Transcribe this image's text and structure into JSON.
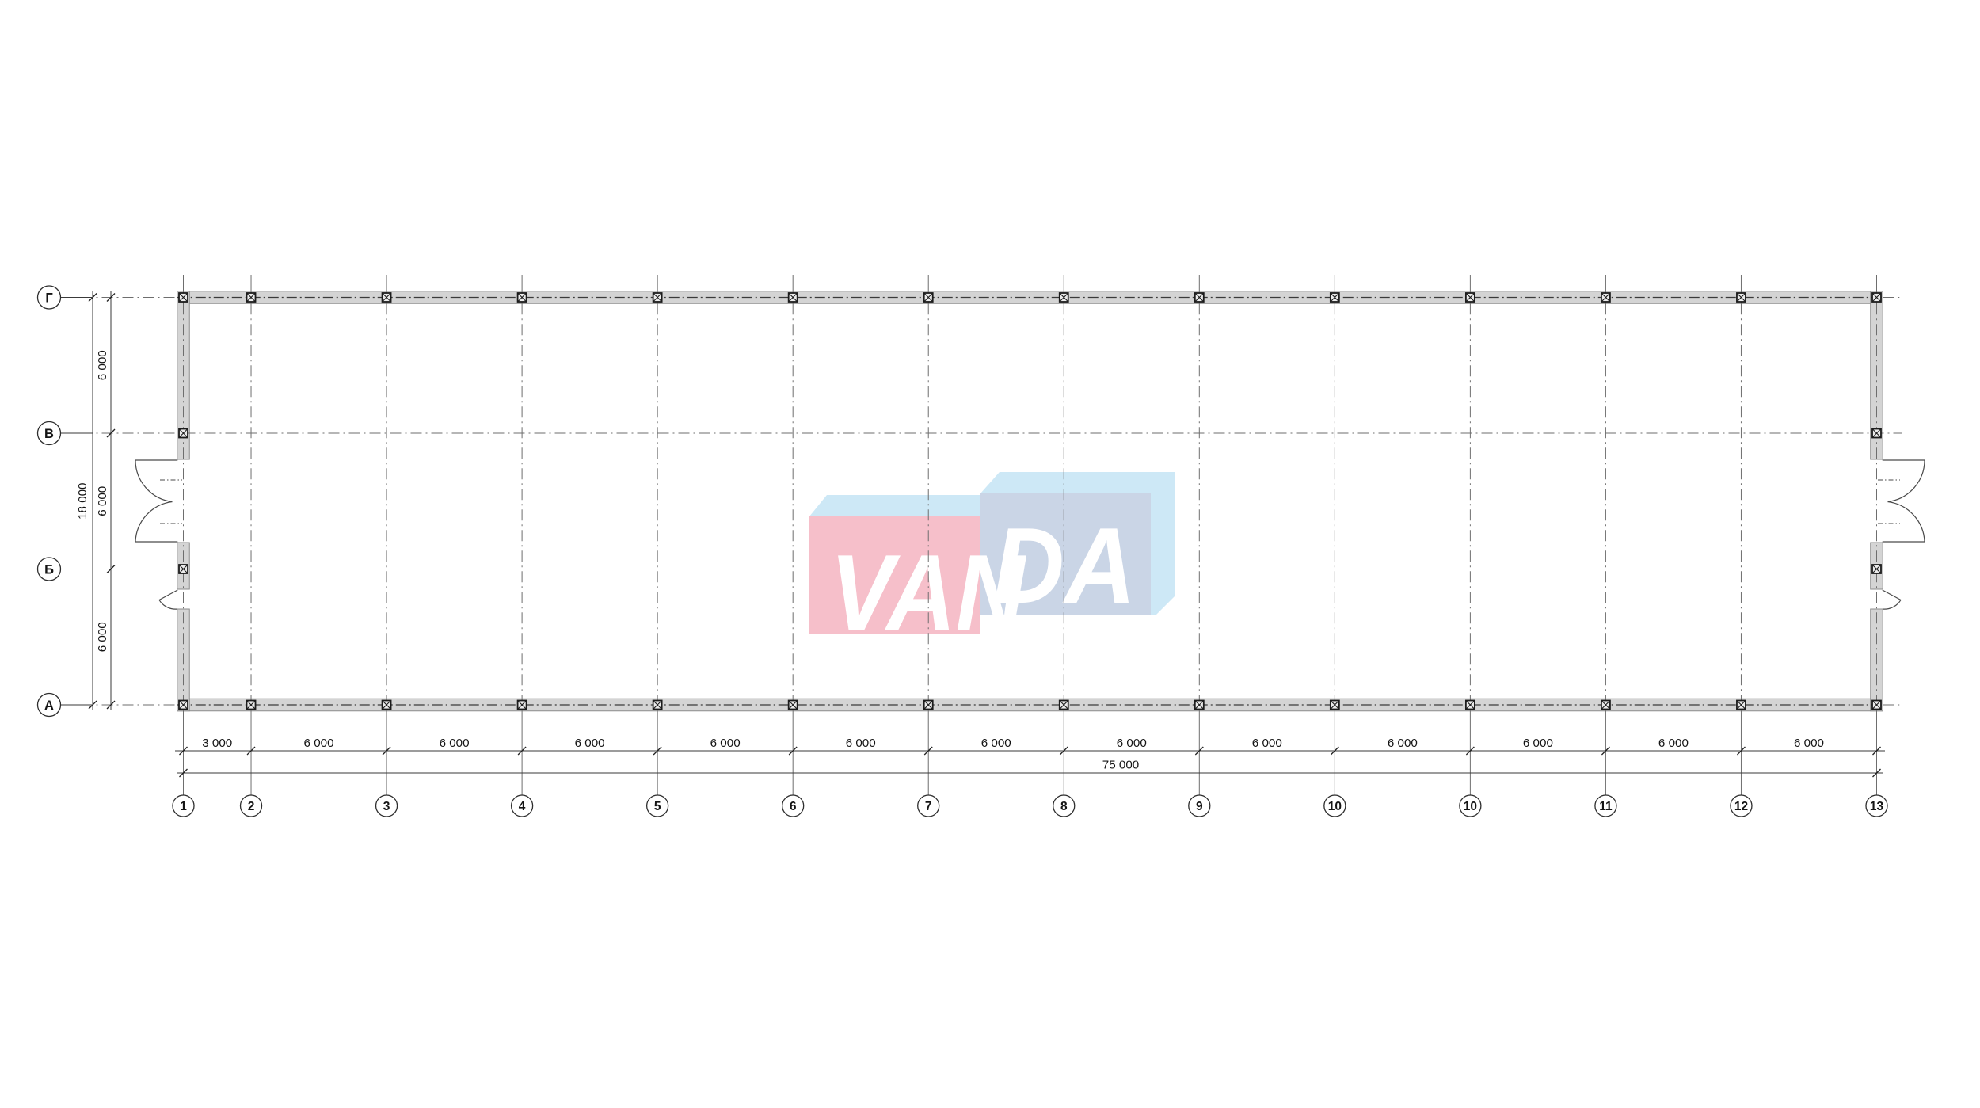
{
  "watermark": {
    "text": "VANDA",
    "colors": {
      "pink_face": "#f6bfca",
      "light_blue": "#cde8f6",
      "blue_face": "#cad5e6",
      "letter": "#ffffff"
    }
  },
  "axes": {
    "columns": [
      "1",
      "2",
      "3",
      "4",
      "5",
      "6",
      "7",
      "8",
      "9",
      "10",
      "10",
      "11",
      "12",
      "13"
    ],
    "rows": [
      "Г",
      "В",
      "Б",
      "А"
    ]
  },
  "dimensions": {
    "bottom_bays": [
      "3 000",
      "6 000",
      "6 000",
      "6 000",
      "6 000",
      "6 000",
      "6 000",
      "6 000",
      "6 000",
      "6 000",
      "6 000",
      "6 000",
      "6 000"
    ],
    "bottom_total": "75 000",
    "left_bays": [
      "6 000",
      "6 000",
      "6 000"
    ],
    "left_total": "18 000"
  },
  "colors": {
    "background": "#ffffff",
    "wall_fill": "#d4d4d4",
    "wall_edge": "#8c8c8c",
    "centerline": "#3a3a3a",
    "grid_line": "#6e6e6e",
    "dim_line": "#3a3a3a",
    "door_line": "#4a4a4a",
    "marker_stroke": "#1c1c1c",
    "marker_fill": "#ebebeb",
    "text": "#141414",
    "bubble_stroke": "#2e2e2e"
  }
}
